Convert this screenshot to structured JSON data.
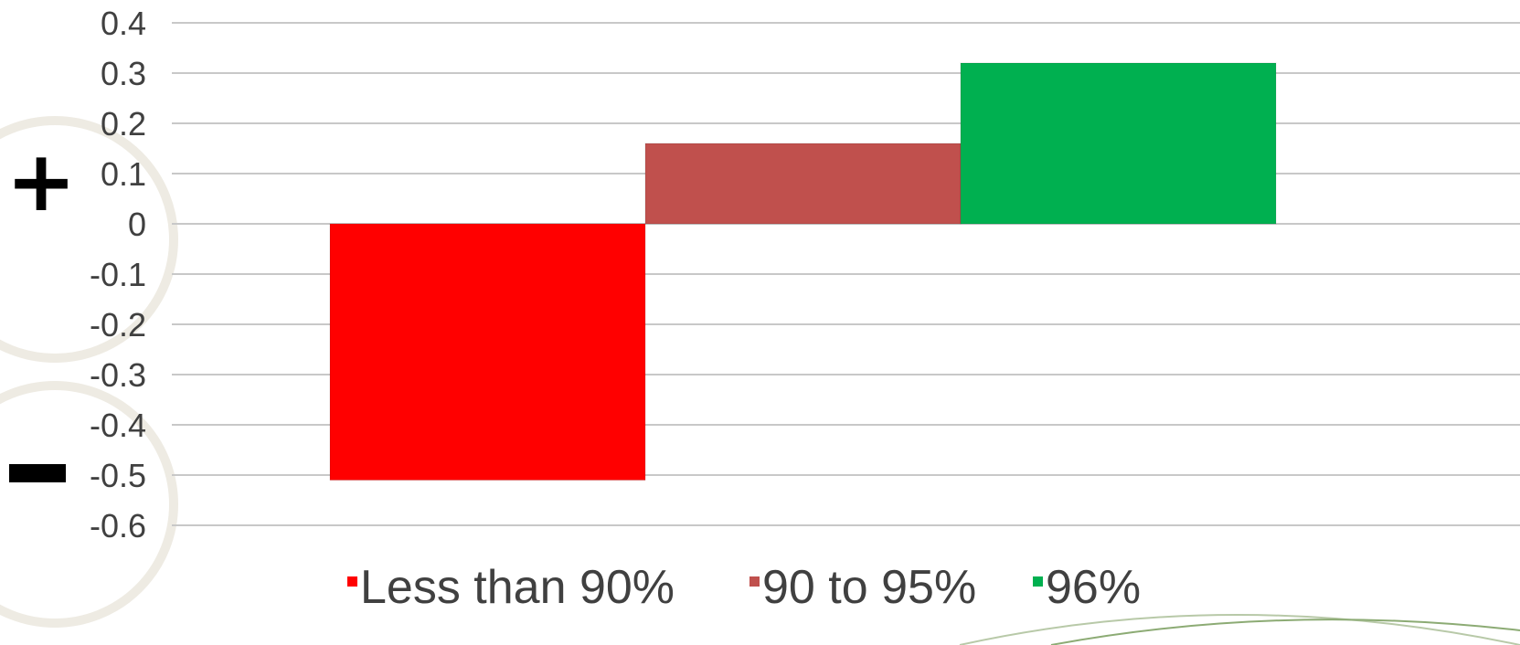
{
  "chart_data": {
    "type": "bar",
    "title": "",
    "xlabel": "",
    "ylabel": "",
    "ylim": [
      -0.6,
      0.4
    ],
    "yticks": [
      0.4,
      0.3,
      0.2,
      0.1,
      0,
      -0.1,
      -0.2,
      -0.3,
      -0.4,
      -0.5,
      -0.6
    ],
    "grid": true,
    "legend_position": "bottom",
    "series": [
      {
        "name": "Less than 90%",
        "value": -0.51,
        "color": "#ff0000"
      },
      {
        "name": "90 to 95%",
        "value": 0.16,
        "color": "#c0504d"
      },
      {
        "name": "96%",
        "value": 0.32,
        "color": "#00b050"
      }
    ],
    "annotations": {
      "positive_sign": "+",
      "negative_sign": "–"
    }
  }
}
